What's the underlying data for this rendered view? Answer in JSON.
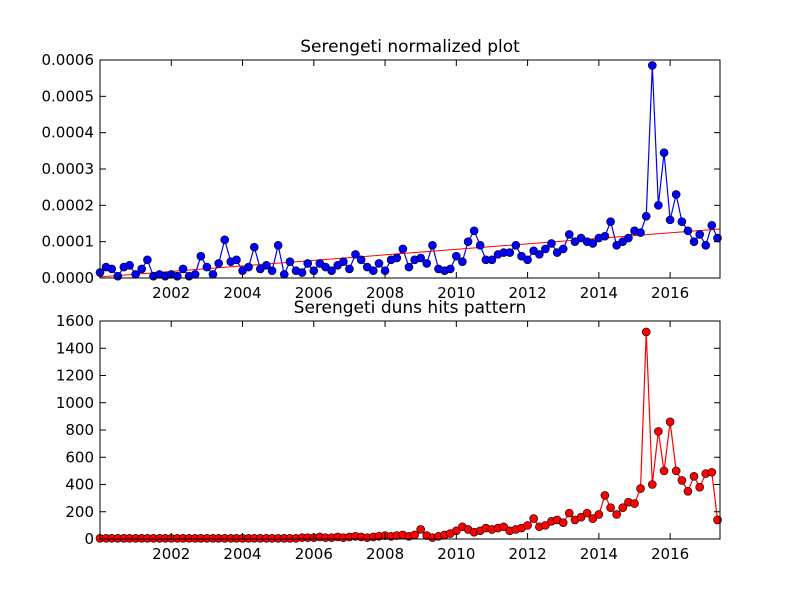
{
  "chart_data": [
    {
      "type": "line",
      "title": "Serengeti normalized plot",
      "x": [
        2000,
        2000.17,
        2000.33,
        2000.5,
        2000.67,
        2000.83,
        2001,
        2001.17,
        2001.33,
        2001.5,
        2001.67,
        2001.83,
        2002,
        2002.17,
        2002.33,
        2002.5,
        2002.67,
        2002.83,
        2003,
        2003.17,
        2003.33,
        2003.5,
        2003.67,
        2003.83,
        2004,
        2004.17,
        2004.33,
        2004.5,
        2004.67,
        2004.83,
        2005,
        2005.17,
        2005.33,
        2005.5,
        2005.67,
        2005.83,
        2006,
        2006.17,
        2006.33,
        2006.5,
        2006.67,
        2006.83,
        2007,
        2007.17,
        2007.33,
        2007.5,
        2007.67,
        2007.83,
        2008,
        2008.17,
        2008.33,
        2008.5,
        2008.67,
        2008.83,
        2009,
        2009.17,
        2009.33,
        2009.5,
        2009.67,
        2009.83,
        2010,
        2010.17,
        2010.33,
        2010.5,
        2010.67,
        2010.83,
        2011,
        2011.17,
        2011.33,
        2011.5,
        2011.67,
        2011.83,
        2012,
        2012.17,
        2012.33,
        2012.5,
        2012.67,
        2012.83,
        2013,
        2013.17,
        2013.33,
        2013.5,
        2013.67,
        2013.83,
        2014,
        2014.17,
        2014.33,
        2014.5,
        2014.67,
        2014.83,
        2015,
        2015.17,
        2015.33,
        2015.5,
        2015.67,
        2015.83,
        2016,
        2016.17,
        2016.33,
        2016.5,
        2016.67,
        2016.83,
        2017,
        2017.17,
        2017.33
      ],
      "series": [
        {
          "color": "#0000ff",
          "values": [
            1.5e-05,
            3e-05,
            2.5e-05,
            5e-06,
            3e-05,
            3.5e-05,
            1e-05,
            2.5e-05,
            5e-05,
            5e-06,
            1e-05,
            5e-06,
            1e-05,
            5e-06,
            2.5e-05,
            5e-06,
            1e-05,
            6e-05,
            3e-05,
            1e-05,
            4e-05,
            0.000105,
            4.5e-05,
            5e-05,
            2e-05,
            3e-05,
            8.5e-05,
            2.5e-05,
            3.5e-05,
            2e-05,
            9e-05,
            1e-05,
            4.5e-05,
            2e-05,
            1.5e-05,
            4e-05,
            2e-05,
            4e-05,
            3e-05,
            2e-05,
            3.5e-05,
            4.5e-05,
            2.5e-05,
            6.5e-05,
            5e-05,
            3e-05,
            2e-05,
            4e-05,
            2e-05,
            5e-05,
            5.5e-05,
            8e-05,
            3e-05,
            5e-05,
            5.5e-05,
            4e-05,
            9e-05,
            2.5e-05,
            2e-05,
            2.5e-05,
            6e-05,
            4.5e-05,
            0.0001,
            0.00013,
            9e-05,
            5e-05,
            5e-05,
            6.5e-05,
            7e-05,
            7e-05,
            9e-05,
            6e-05,
            5e-05,
            7.5e-05,
            6.5e-05,
            8e-05,
            9.5e-05,
            7e-05,
            8e-05,
            0.00012,
            0.0001,
            0.00011,
            0.0001,
            9.5e-05,
            0.00011,
            0.000115,
            0.000155,
            9e-05,
            0.0001,
            0.00011,
            0.00013,
            0.000125,
            0.00017,
            0.000585,
            0.0002,
            0.000345,
            0.00016,
            0.00023,
            0.000155,
            0.00013,
            0.0001,
            0.00012,
            9e-05,
            0.000145,
            0.00011
          ]
        }
      ],
      "fit": {
        "color": "#ff0000",
        "x": [
          2000,
          2017.4
        ],
        "values": [
          3e-06,
          0.000135
        ]
      },
      "xlim": [
        2000,
        2017.4
      ],
      "xticks": [
        2002,
        2004,
        2006,
        2008,
        2010,
        2012,
        2014,
        2016
      ],
      "ylim": [
        0,
        0.0006
      ],
      "yticks": [
        {
          "value": 0,
          "label": "0.0000"
        },
        {
          "value": 0.0001,
          "label": "0.0001"
        },
        {
          "value": 0.0002,
          "label": "0.0002"
        },
        {
          "value": 0.0003,
          "label": "0.0003"
        },
        {
          "value": 0.0004,
          "label": "0.0004"
        },
        {
          "value": 0.0005,
          "label": "0.0005"
        },
        {
          "value": 0.0006,
          "label": "0.0006"
        }
      ]
    },
    {
      "type": "line",
      "title": "Serengeti duns hits pattern",
      "x": [
        2000,
        2000.17,
        2000.33,
        2000.5,
        2000.67,
        2000.83,
        2001,
        2001.17,
        2001.33,
        2001.5,
        2001.67,
        2001.83,
        2002,
        2002.17,
        2002.33,
        2002.5,
        2002.67,
        2002.83,
        2003,
        2003.17,
        2003.33,
        2003.5,
        2003.67,
        2003.83,
        2004,
        2004.17,
        2004.33,
        2004.5,
        2004.67,
        2004.83,
        2005,
        2005.17,
        2005.33,
        2005.5,
        2005.67,
        2005.83,
        2006,
        2006.17,
        2006.33,
        2006.5,
        2006.67,
        2006.83,
        2007,
        2007.17,
        2007.33,
        2007.5,
        2007.67,
        2007.83,
        2008,
        2008.17,
        2008.33,
        2008.5,
        2008.67,
        2008.83,
        2009,
        2009.17,
        2009.33,
        2009.5,
        2009.67,
        2009.83,
        2010,
        2010.17,
        2010.33,
        2010.5,
        2010.67,
        2010.83,
        2011,
        2011.17,
        2011.33,
        2011.5,
        2011.67,
        2011.83,
        2012,
        2012.17,
        2012.33,
        2012.5,
        2012.67,
        2012.83,
        2013,
        2013.17,
        2013.33,
        2013.5,
        2013.67,
        2013.83,
        2014,
        2014.17,
        2014.33,
        2014.5,
        2014.67,
        2014.83,
        2015,
        2015.17,
        2015.33,
        2015.5,
        2015.67,
        2015.83,
        2016,
        2016.17,
        2016.33,
        2016.5,
        2016.67,
        2016.83,
        2017,
        2017.17,
        2017.33
      ],
      "series": [
        {
          "color": "#ff0000",
          "values": [
            5,
            5,
            5,
            5,
            5,
            5,
            5,
            5,
            5,
            5,
            5,
            5,
            5,
            5,
            5,
            5,
            5,
            5,
            5,
            5,
            5,
            5,
            5,
            5,
            5,
            5,
            5,
            5,
            5,
            5,
            5,
            5,
            5,
            5,
            10,
            10,
            10,
            15,
            10,
            10,
            15,
            10,
            15,
            20,
            15,
            10,
            15,
            20,
            25,
            20,
            25,
            30,
            20,
            30,
            70,
            25,
            10,
            20,
            30,
            40,
            60,
            90,
            70,
            50,
            60,
            80,
            70,
            80,
            90,
            60,
            70,
            80,
            100,
            150,
            90,
            100,
            130,
            140,
            120,
            190,
            140,
            160,
            190,
            150,
            180,
            320,
            230,
            180,
            230,
            270,
            260,
            370,
            1520,
            400,
            790,
            500,
            860,
            500,
            430,
            350,
            460,
            380,
            480,
            490,
            140
          ]
        }
      ],
      "xlim": [
        2000,
        2017.4
      ],
      "xticks": [
        2002,
        2004,
        2006,
        2008,
        2010,
        2012,
        2014,
        2016
      ],
      "ylim": [
        0,
        1600
      ],
      "yticks": [
        0,
        200,
        400,
        600,
        800,
        1000,
        1200,
        1400,
        1600
      ]
    }
  ]
}
